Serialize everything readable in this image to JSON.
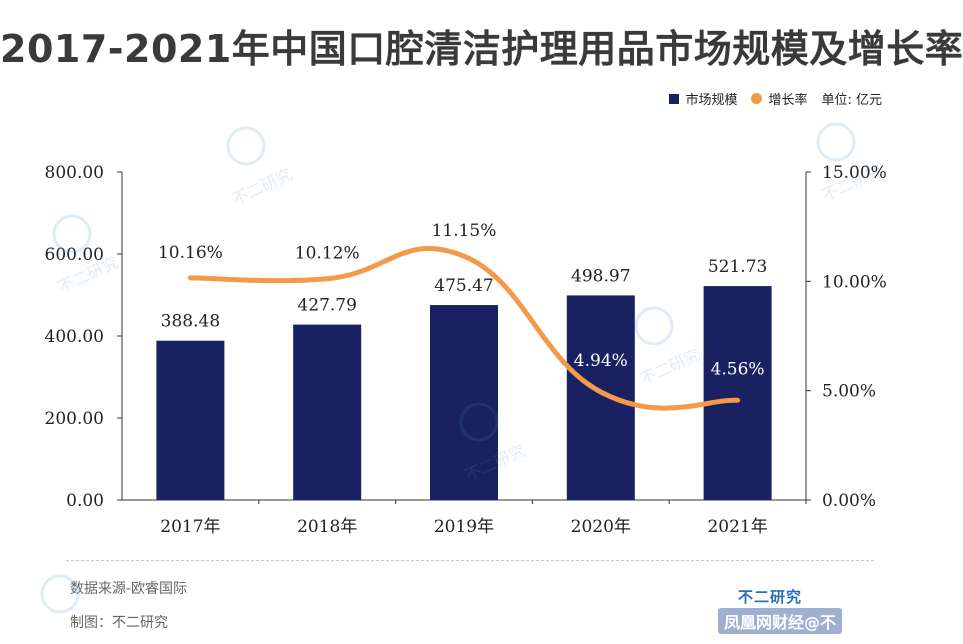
{
  "title": "2017-2021年中国口腔清洁护理用品市场规模及增长率",
  "legend": {
    "bar_label": "市场规模",
    "line_label": "增长率",
    "unit": "单位: 亿元"
  },
  "footer": {
    "source": "数据来源-欧睿国际",
    "maker": "制图：不二研究",
    "brand": "不二研究",
    "platform": "凤凰网财经@不"
  },
  "watermark": "不二研究",
  "colors": {
    "bar": "#1a2160",
    "line": "#f29a4a"
  },
  "chart_data": {
    "type": "bar+line",
    "title": "2017-2021年中国口腔清洁护理用品市场规模及增长率",
    "categories": [
      "2017年",
      "2018年",
      "2019年",
      "2020年",
      "2021年"
    ],
    "series": [
      {
        "name": "市场规模",
        "type": "bar",
        "axis": "left",
        "values": [
          388.48,
          427.79,
          475.47,
          498.97,
          521.73
        ],
        "labels": [
          "388.48",
          "427.79",
          "475.47",
          "498.97",
          "521.73"
        ]
      },
      {
        "name": "增长率",
        "type": "line",
        "axis": "right",
        "values": [
          10.16,
          10.12,
          11.15,
          4.94,
          4.56
        ],
        "labels": [
          "10.16%",
          "10.12%",
          "11.15%",
          "4.94%",
          "4.56%"
        ]
      }
    ],
    "y_left": {
      "min": 0,
      "max": 800,
      "ticks": [
        "0.00",
        "200.00",
        "400.00",
        "600.00",
        "800.00"
      ]
    },
    "y_right": {
      "min": 0,
      "max": 15,
      "ticks": [
        "0.00%",
        "5.00%",
        "10.00%",
        "15.00%"
      ]
    },
    "legend_position": "top-right",
    "grid": false
  }
}
